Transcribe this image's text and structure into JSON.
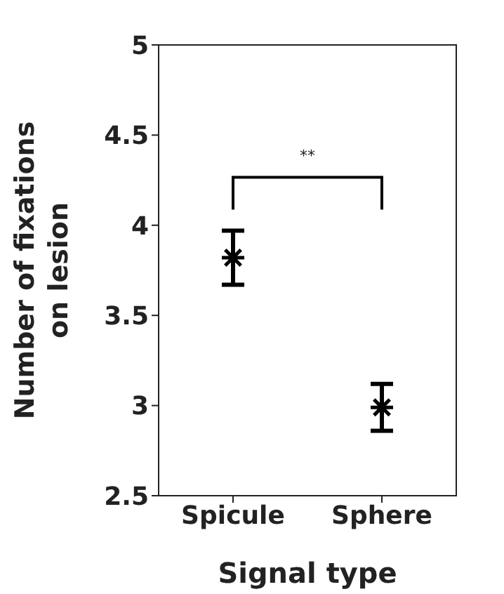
{
  "chart_data": {
    "type": "scatter",
    "xlabel": "Signal type",
    "ylabel": "Number of fixations on lesion",
    "categories": [
      "Spicule",
      "Sphere"
    ],
    "values": [
      3.82,
      2.99
    ],
    "errors": [
      [
        3.67,
        3.97
      ],
      [
        2.86,
        3.12
      ]
    ],
    "color": "#000000",
    "marker": "cross",
    "ylim": [
      2.5,
      5
    ],
    "yticks": [
      2.5,
      3,
      3.5,
      4,
      4.5,
      5
    ],
    "grid": false,
    "annotations": [
      "**"
    ]
  }
}
